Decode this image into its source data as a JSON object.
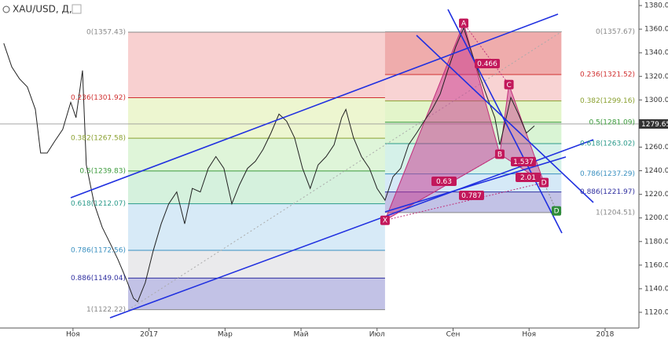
{
  "chart_data": {
    "type": "line",
    "title": "XAU/USD, Д,",
    "series": [
      {
        "name": "XAU/USD",
        "color": "#222222",
        "x": [
          -1.82,
          -1.61,
          -1.41,
          -1.2,
          -0.99,
          -0.85,
          -0.68,
          -0.48,
          -0.27,
          -0.06,
          0.08,
          0.25,
          0.35,
          0.56,
          0.77,
          0.97,
          1.18,
          1.39,
          1.59,
          1.7,
          1.9,
          2.11,
          2.32,
          2.52,
          2.73,
          2.94,
          3.14,
          3.35,
          3.56,
          3.76,
          3.97,
          4.18,
          4.38,
          4.59,
          4.8,
          5.0,
          5.21,
          5.42,
          5.62,
          5.83,
          6.04,
          6.24,
          6.45,
          6.66,
          6.87,
          7.07,
          7.18,
          7.38,
          7.59,
          7.8,
          8.0,
          8.21,
          8.42,
          8.62,
          8.83,
          9.04,
          9.24,
          9.45,
          9.66,
          9.86,
          10.07,
          10.28,
          10.48,
          10.69,
          10.9,
          11.1,
          11.23,
          11.42,
          11.52,
          11.72,
          11.93,
          12.14
        ],
        "values": [
          1348,
          1328,
          1318,
          1311,
          1292,
          1255,
          1255,
          1265,
          1275,
          1298,
          1285,
          1325,
          1245,
          1212,
          1192,
          1179,
          1165,
          1149,
          1132,
          1129,
          1145,
          1172,
          1195,
          1212,
          1222,
          1195,
          1225,
          1222,
          1242,
          1252,
          1242,
          1212,
          1228,
          1242,
          1248,
          1258,
          1272,
          1288,
          1282,
          1268,
          1242,
          1225,
          1245,
          1252,
          1262,
          1285,
          1292,
          1268,
          1252,
          1242,
          1225,
          1215,
          1235,
          1242,
          1262,
          1272,
          1282,
          1292,
          1305,
          1325,
          1345,
          1361,
          1341,
          1321,
          1302,
          1285,
          1262,
          1288,
          1302,
          1288,
          1272,
          1278
        ]
      }
    ],
    "last_price": 1279.65,
    "xlim": [
      -1.92,
      14.89
    ],
    "xticks": [
      {
        "value": 0,
        "label": "Ноя"
      },
      {
        "value": 2,
        "label": "2017"
      },
      {
        "value": 4,
        "label": "Мар"
      },
      {
        "value": 6,
        "label": "Май"
      },
      {
        "value": 8,
        "label": "Июл"
      },
      {
        "value": 10,
        "label": "Сен"
      },
      {
        "value": 12,
        "label": "Ноя"
      },
      {
        "value": 14,
        "label": "2018"
      }
    ],
    "ylim": [
      1106.7,
      1384.7
    ],
    "yticks": [
      {
        "value": 1120,
        "label": "1120.00"
      },
      {
        "value": 1140,
        "label": "1140.00"
      },
      {
        "value": 1160,
        "label": "1160.00"
      },
      {
        "value": 1180,
        "label": "1180.00"
      },
      {
        "value": 1200,
        "label": "1200.00"
      },
      {
        "value": 1220,
        "label": "1220.00"
      },
      {
        "value": 1240,
        "label": "1240.00"
      },
      {
        "value": 1260,
        "label": "1260.00"
      },
      {
        "value": 1280,
        "label": "1280.00"
      },
      {
        "value": 1300,
        "label": "1300.00"
      },
      {
        "value": 1320,
        "label": "1320.00"
      },
      {
        "value": 1340,
        "label": "1340.00"
      },
      {
        "value": 1360,
        "label": "1360.00"
      },
      {
        "value": 1380,
        "label": "1380.00"
      }
    ],
    "fibs": [
      {
        "x": [
          1.45,
          8.21
        ],
        "label_side": "left",
        "colors": [
          "rgba(232,110,110,0.32)",
          "rgba(215,235,150,0.45)",
          "rgba(175,230,160,0.4)",
          "rgba(150,220,170,0.4)",
          "rgba(150,200,235,0.38)",
          "rgba(200,200,205,0.38)",
          "rgba(120,120,200,0.45)"
        ],
        "line_colors": [
          "#888888",
          "#d03030",
          "#8aa030",
          "#3a9a3a",
          "#2a9a8a",
          "#3a90c0",
          "#3030a0",
          "#888888"
        ],
        "levels": [
          {
            "value": 1357.43,
            "label": "0(1357.43)"
          },
          {
            "value": 1301.92,
            "label": "0.236(1301.92)"
          },
          {
            "value": 1267.58,
            "label": "0.382(1267.58)"
          },
          {
            "value": 1239.83,
            "label": "0.5(1239.83)"
          },
          {
            "value": 1212.07,
            "label": "0.618(1212.07)"
          },
          {
            "value": 1172.56,
            "label": "0.786(1172.56)"
          },
          {
            "value": 1149.04,
            "label": "0.886(1149.04)"
          },
          {
            "value": 1122.22,
            "label": "1(1122.22)"
          }
        ]
      },
      {
        "x": [
          8.21,
          12.85
        ],
        "label_side": "right",
        "colors": [
          "rgba(220,70,70,0.45)",
          "rgba(232,110,110,0.3)",
          "rgba(200,235,150,0.5)",
          "rgba(170,230,160,0.45)",
          "rgba(150,220,200,0.4)",
          "rgba(150,200,235,0.4)",
          "rgba(120,120,200,0.45)"
        ],
        "line_colors": [
          "#888888",
          "#d03030",
          "#8aa030",
          "#3a9a3a",
          "#2a9a8a",
          "#3a90c0",
          "#3030a0",
          "#888888"
        ],
        "levels": [
          {
            "value": 1357.67,
            "label": "0(1357.67)"
          },
          {
            "value": 1321.52,
            "label": "0.236(1321.52)"
          },
          {
            "value": 1299.16,
            "label": "0.382(1299.16)"
          },
          {
            "value": 1281.09,
            "label": "0.5(1281.09)"
          },
          {
            "value": 1263.02,
            "label": "0.618(1263.02)"
          },
          {
            "value": 1237.29,
            "label": "0.786(1237.29)"
          },
          {
            "value": 1221.97,
            "label": "0.886(1221.97)"
          },
          {
            "value": 1204.51,
            "label": "1(1204.51)"
          }
        ]
      }
    ],
    "pattern": {
      "points": [
        {
          "label": "X",
          "x": 8.21,
          "y": 1198
        },
        {
          "label": "A",
          "x": 10.28,
          "y": 1365
        },
        {
          "label": "B",
          "x": 11.23,
          "y": 1254
        },
        {
          "label": "C",
          "x": 11.47,
          "y": 1313
        },
        {
          "label": "D",
          "x": 12.39,
          "y": 1230
        },
        {
          "label": "D",
          "x": 12.72,
          "y": 1206
        }
      ],
      "ratios": [
        0.466,
        0.63,
        1.537,
        2.01,
        0.787
      ]
    }
  }
}
